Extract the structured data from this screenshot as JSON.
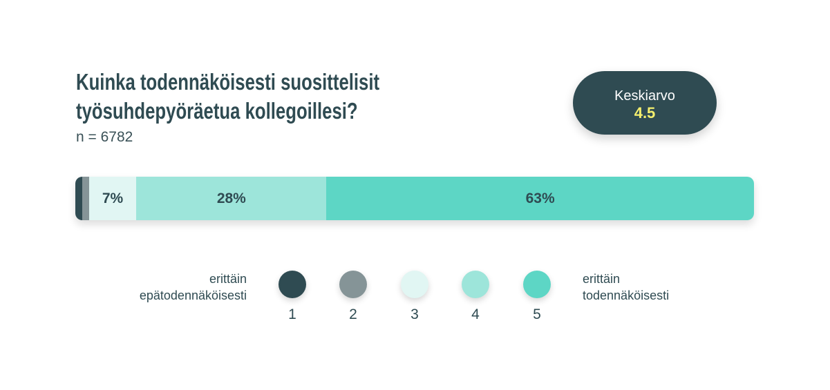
{
  "header": {
    "title_line1": "Kuinka todennäköisesti suosittelisit",
    "title_line2": "työsuhdepyöräetua kollegoillesi?",
    "sample_size": "n = 6782"
  },
  "average": {
    "label": "Keskiarvo",
    "value": "4.5"
  },
  "legend": {
    "left_label_line1": "erittäin",
    "left_label_line2": "epätodennäköisesti",
    "right_label_line1": "erittäin",
    "right_label_line2": "todennäköisesti",
    "items": [
      {
        "label": "1",
        "color": "#2f4b52"
      },
      {
        "label": "2",
        "color": "#859497"
      },
      {
        "label": "3",
        "color": "#e1f6f3"
      },
      {
        "label": "4",
        "color": "#9de5da"
      },
      {
        "label": "5",
        "color": "#5dd6c5"
      }
    ]
  },
  "chart_data": {
    "type": "bar",
    "orientation": "horizontal",
    "stacked": true,
    "title": "Kuinka todennäköisesti suosittelisit työsuhdepyöräetua kollegoillesi?",
    "subtitle": "n = 6782",
    "categories": [
      "1",
      "2",
      "3",
      "4",
      "5"
    ],
    "values": [
      1,
      1,
      7,
      28,
      63
    ],
    "data_labels": [
      "",
      "",
      "7%",
      "28%",
      "63%"
    ],
    "colors": [
      "#2f4b52",
      "#859497",
      "#e1f6f3",
      "#9de5da",
      "#5dd6c5"
    ],
    "legend_position": "bottom",
    "grid": false
  }
}
